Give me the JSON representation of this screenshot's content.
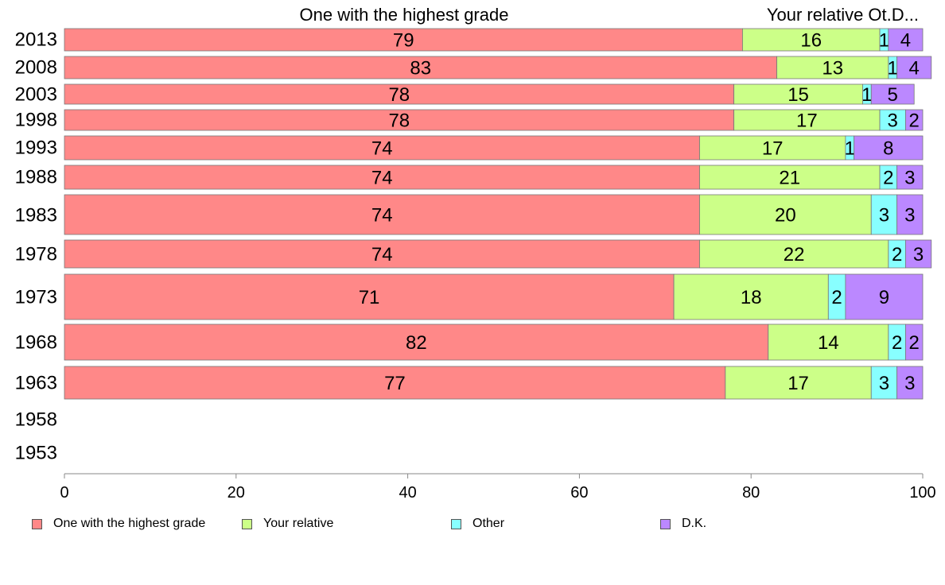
{
  "chart_data": {
    "type": "bar",
    "orientation": "horizontal",
    "stacked": true,
    "header_labels": [
      "One with the highest grade",
      "Your relative Ot.D..."
    ],
    "categories": [
      "2013",
      "2008",
      "2003",
      "1998",
      "1993",
      "1988",
      "1983",
      "1978",
      "1973",
      "1968",
      "1963",
      "1958",
      "1953"
    ],
    "series": [
      {
        "name": "One with the highest grade",
        "color": "#ff8888",
        "values": [
          79,
          83,
          78,
          78,
          74,
          74,
          74,
          74,
          71,
          82,
          77,
          null,
          null
        ]
      },
      {
        "name": "Your relative",
        "color": "#ccff88",
        "values": [
          16,
          13,
          15,
          17,
          17,
          21,
          20,
          22,
          18,
          14,
          17,
          null,
          null
        ]
      },
      {
        "name": "Other",
        "color": "#88ffff",
        "values": [
          1,
          1,
          1,
          3,
          1,
          2,
          3,
          2,
          2,
          2,
          3,
          null,
          null
        ]
      },
      {
        "name": "D.K.",
        "color": "#bb88ff",
        "values": [
          4,
          4,
          5,
          2,
          8,
          3,
          3,
          3,
          9,
          2,
          3,
          null,
          null
        ]
      }
    ],
    "x_ticks": [
      "0",
      "20",
      "40",
      "60",
      "80",
      "100"
    ],
    "xlim": [
      0,
      100
    ],
    "grid": false,
    "legend_position": "bottom"
  }
}
